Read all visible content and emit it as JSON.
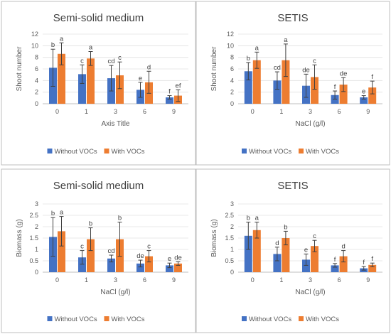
{
  "colors": {
    "without": "#4472C4",
    "with": "#ED7D31"
  },
  "chart_data": [
    {
      "type": "bar",
      "title": "Semi-solid medium",
      "xlabel": "Axis Title",
      "ylabel": "Shoot number",
      "categories": [
        "0",
        "1",
        "3",
        "6",
        "9"
      ],
      "ylim": [
        0,
        12
      ],
      "yticks": [
        0,
        2,
        4,
        6,
        8,
        10,
        12
      ],
      "grid": true,
      "legend": "bottom",
      "series": [
        {
          "name": "Without VOCs",
          "values": [
            6.2,
            5.1,
            4.4,
            2.4,
            1.1
          ],
          "errors": [
            3.2,
            1.6,
            2.2,
            1.3,
            0.3
          ],
          "labels": [
            "b",
            "c",
            "cd",
            "e",
            "f"
          ]
        },
        {
          "name": "With VOCs",
          "values": [
            8.6,
            7.8,
            4.9,
            3.7,
            1.4
          ],
          "errors": [
            1.9,
            1.2,
            2.3,
            1.9,
            1.0
          ],
          "labels": [
            "a",
            "a",
            "c",
            "d",
            "ef"
          ]
        }
      ]
    },
    {
      "type": "bar",
      "title": "SETIS",
      "xlabel": "NaCl (g/l)",
      "ylabel": "Shoot number",
      "categories": [
        "0",
        "1",
        "3",
        "6",
        "9"
      ],
      "ylim": [
        0,
        12
      ],
      "yticks": [
        0,
        2,
        4,
        6,
        8,
        10,
        12
      ],
      "grid": true,
      "legend": "bottom",
      "series": [
        {
          "name": "Without VOCs",
          "values": [
            5.6,
            4.0,
            3.1,
            1.5,
            1.1
          ],
          "errors": [
            1.5,
            1.5,
            2.0,
            0.7,
            0.3
          ],
          "labels": [
            "b",
            "cd",
            "de",
            "f",
            "e"
          ]
        },
        {
          "name": "With VOCs",
          "values": [
            7.5,
            7.5,
            4.6,
            3.3,
            2.8
          ],
          "errors": [
            1.4,
            2.8,
            2.1,
            1.2,
            1.1
          ],
          "labels": [
            "a",
            "a",
            "c",
            "de",
            "f"
          ]
        }
      ]
    },
    {
      "type": "bar",
      "title": "Semi-solid medium",
      "xlabel": "NaCl (g/l)",
      "ylabel": "Biomass (g)",
      "categories": [
        "0",
        "1",
        "3",
        "6",
        "9"
      ],
      "ylim": [
        0,
        3
      ],
      "yticks": [
        0,
        0.5,
        1,
        1.5,
        2,
        2.5,
        3
      ],
      "grid": true,
      "legend": "bottom",
      "series": [
        {
          "name": "Without VOCs",
          "values": [
            1.55,
            0.65,
            0.6,
            0.38,
            0.3
          ],
          "errors": [
            0.85,
            0.3,
            0.15,
            0.15,
            0.1
          ],
          "labels": [
            "b",
            "c",
            "cd",
            "de",
            "e"
          ]
        },
        {
          "name": "With VOCs",
          "values": [
            1.8,
            1.45,
            1.45,
            0.7,
            0.38
          ],
          "errors": [
            0.65,
            0.5,
            0.75,
            0.25,
            0.08
          ],
          "labels": [
            "a",
            "b",
            "b",
            "c",
            "de"
          ]
        }
      ]
    },
    {
      "type": "bar",
      "title": "SETIS",
      "xlabel": "NaCl (g/l)",
      "ylabel": "Biomass (g)",
      "categories": [
        "0",
        "1",
        "3",
        "6",
        "9"
      ],
      "ylim": [
        0,
        3
      ],
      "yticks": [
        0,
        0.5,
        1,
        1.5,
        2,
        2.5,
        3
      ],
      "grid": true,
      "legend": "bottom",
      "series": [
        {
          "name": "Without VOCs",
          "values": [
            1.6,
            0.8,
            0.55,
            0.3,
            0.17
          ],
          "errors": [
            0.6,
            0.3,
            0.25,
            0.08,
            0.08
          ],
          "labels": [
            "b",
            "d",
            "e",
            "f",
            "f"
          ]
        },
        {
          "name": "With VOCs",
          "values": [
            1.85,
            1.5,
            1.15,
            0.7,
            0.32
          ],
          "errors": [
            0.35,
            0.3,
            0.25,
            0.25,
            0.08
          ],
          "labels": [
            "a",
            "b",
            "c",
            "d",
            "f"
          ]
        }
      ]
    }
  ]
}
